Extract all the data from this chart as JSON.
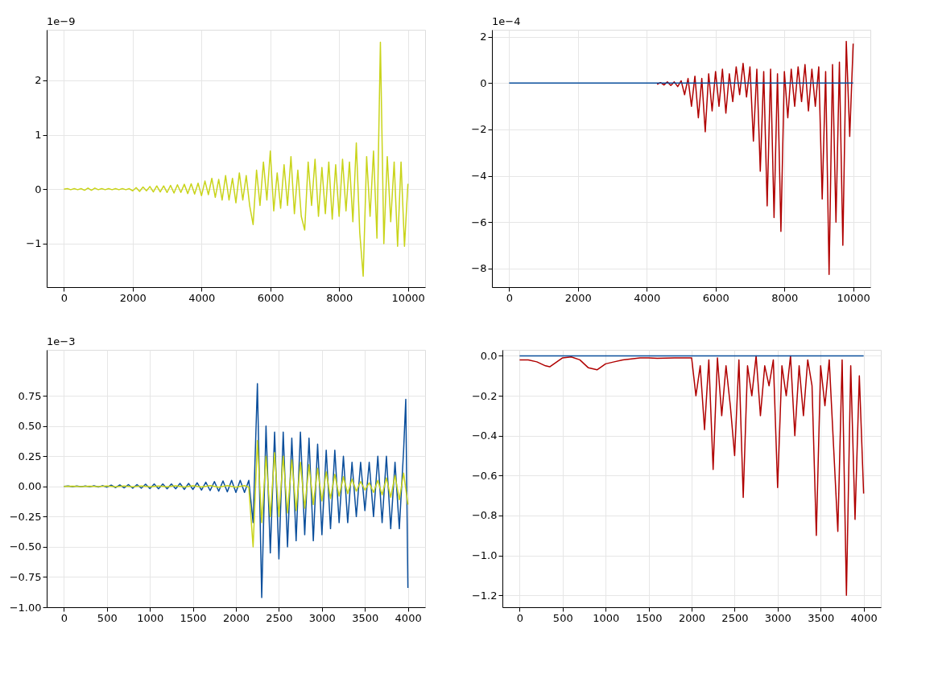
{
  "chart_data": [
    {
      "type": "line",
      "annotations": [
        "1e−9"
      ],
      "grid": true,
      "xlim": [
        -500,
        10500
      ],
      "xticks": [
        0,
        2000,
        4000,
        6000,
        8000,
        10000
      ],
      "ylim": [
        -1.8,
        2.93
      ],
      "yticks": [
        {
          "value": -1,
          "label": "−1"
        },
        0,
        1,
        2
      ],
      "x": [
        0,
        100,
        200,
        300,
        400,
        500,
        600,
        700,
        800,
        900,
        1000,
        1100,
        1200,
        1300,
        1400,
        1500,
        1600,
        1700,
        1800,
        1900,
        2000,
        2100,
        2200,
        2300,
        2400,
        2500,
        2600,
        2700,
        2800,
        2900,
        3000,
        3100,
        3200,
        3300,
        3400,
        3500,
        3600,
        3700,
        3800,
        3900,
        4000,
        4100,
        4200,
        4300,
        4400,
        4500,
        4600,
        4700,
        4800,
        4900,
        5000,
        5100,
        5200,
        5300,
        5400,
        5500,
        5600,
        5700,
        5800,
        5900,
        6000,
        6100,
        6200,
        6300,
        6400,
        6500,
        6600,
        6700,
        6800,
        6900,
        7000,
        7100,
        7200,
        7300,
        7400,
        7500,
        7600,
        7700,
        7800,
        7900,
        8000,
        8100,
        8200,
        8300,
        8400,
        8500,
        8600,
        8700,
        8800,
        8900,
        9000,
        9100,
        9200,
        9300,
        9400,
        9500,
        9600,
        9700,
        9800,
        9900,
        10000
      ],
      "series": [
        {
          "color": "#c9d41a",
          "values": [
            0,
            0.01,
            -0.01,
            0.01,
            -0.01,
            0.01,
            -0.02,
            0.02,
            -0.02,
            0.02,
            -0.01,
            0.01,
            -0.01,
            0.01,
            -0.01,
            0.01,
            -0.01,
            0.01,
            -0.01,
            0.01,
            -0.03,
            0.03,
            -0.04,
            0.04,
            -0.03,
            0.05,
            -0.05,
            0.06,
            -0.05,
            0.06,
            -0.06,
            0.07,
            -0.07,
            0.08,
            -0.06,
            0.09,
            -0.08,
            0.1,
            -0.09,
            0.11,
            -0.12,
            0.15,
            -0.1,
            0.2,
            -0.15,
            0.18,
            -0.2,
            0.25,
            -0.2,
            0.2,
            -0.25,
            0.3,
            -0.2,
            0.25,
            -0.3,
            -0.65,
            0.35,
            -0.3,
            0.5,
            -0.2,
            0.7,
            -0.4,
            0.3,
            -0.35,
            0.45,
            -0.3,
            0.6,
            -0.45,
            0.35,
            -0.5,
            -0.75,
            0.5,
            -0.3,
            0.55,
            -0.5,
            0.4,
            -0.45,
            0.5,
            -0.55,
            0.45,
            -0.5,
            0.55,
            -0.4,
            0.5,
            -0.6,
            0.85,
            -0.8,
            -1.6,
            0.6,
            -0.5,
            0.7,
            -0.9,
            2.7,
            -1.0,
            0.6,
            -0.6,
            0.5,
            -1.05,
            0.5,
            -1.05,
            0.1
          ]
        }
      ]
    },
    {
      "type": "line",
      "annotations": [
        "1e−4"
      ],
      "grid": true,
      "xlim": [
        -500,
        10500
      ],
      "xticks": [
        0,
        2000,
        4000,
        6000,
        8000,
        10000
      ],
      "ylim": [
        -8.8,
        2.3
      ],
      "yticks": [
        {
          "value": -8,
          "label": "−8"
        },
        {
          "value": -6,
          "label": "−6"
        },
        {
          "value": -4,
          "label": "−4"
        },
        {
          "value": -2,
          "label": "−2"
        },
        0,
        2
      ],
      "series": [
        {
          "color": "#b00000",
          "x": [
            4300,
            4400,
            4500,
            4600,
            4700,
            4800,
            4900,
            5000,
            5100,
            5200,
            5300,
            5400,
            5500,
            5600,
            5700,
            5800,
            5900,
            6000,
            6100,
            6200,
            6300,
            6400,
            6500,
            6600,
            6700,
            6800,
            6900,
            7000,
            7100,
            7200,
            7300,
            7400,
            7500,
            7600,
            7700,
            7800,
            7900,
            8000,
            8100,
            8200,
            8300,
            8400,
            8500,
            8600,
            8700,
            8800,
            8900,
            9000,
            9100,
            9200,
            9300,
            9400,
            9500,
            9600,
            9700,
            9800,
            9900,
            10000
          ],
          "values": [
            -0.05,
            0.02,
            -0.08,
            0.05,
            -0.1,
            0.05,
            -0.15,
            0.1,
            -0.5,
            0.2,
            -1.0,
            0.3,
            -1.5,
            0.2,
            -2.1,
            0.4,
            -1.2,
            0.5,
            -1.0,
            0.6,
            -1.3,
            0.4,
            -0.8,
            0.7,
            -0.5,
            0.85,
            -0.6,
            0.7,
            -2.5,
            0.6,
            -3.8,
            0.5,
            -5.3,
            0.6,
            -5.8,
            0.4,
            -6.4,
            0.5,
            -1.5,
            0.6,
            -1.0,
            0.7,
            -0.8,
            0.8,
            -1.2,
            0.6,
            -1.0,
            0.7,
            -5.0,
            0.5,
            -8.25,
            0.8,
            -6.0,
            0.9,
            -7.0,
            1.8,
            -2.3,
            1.7
          ]
        },
        {
          "color": "#0b4f9c",
          "x": [
            0,
            10000
          ],
          "values": [
            0,
            0
          ]
        }
      ]
    },
    {
      "type": "line",
      "annotations": [
        "1e−3"
      ],
      "grid": true,
      "xlim": [
        -200,
        4200
      ],
      "xticks": [
        0,
        500,
        1000,
        1500,
        2000,
        2500,
        3000,
        3500,
        4000
      ],
      "ylim": [
        -1.0,
        1.13
      ],
      "yticks": [
        {
          "value": -1,
          "label": "−1.00"
        },
        {
          "value": -0.75,
          "label": "−0.75"
        },
        {
          "value": -0.5,
          "label": "−0.50"
        },
        {
          "value": -0.25,
          "label": "−0.25"
        },
        {
          "value": 0,
          "label": "0.00"
        },
        {
          "value": 0.25,
          "label": "0.25"
        },
        {
          "value": 0.5,
          "label": "0.50"
        },
        {
          "value": 0.75,
          "label": "0.75"
        }
      ],
      "series": [
        {
          "color": "#0b4f9c",
          "x": [
            0,
            50,
            100,
            150,
            200,
            250,
            300,
            350,
            400,
            450,
            500,
            550,
            600,
            650,
            700,
            750,
            800,
            850,
            900,
            950,
            1000,
            1050,
            1100,
            1150,
            1200,
            1250,
            1300,
            1350,
            1400,
            1450,
            1500,
            1550,
            1600,
            1650,
            1700,
            1750,
            1800,
            1850,
            1900,
            1950,
            2000,
            2050,
            2100,
            2150,
            2200,
            2250,
            2300,
            2350,
            2400,
            2450,
            2500,
            2550,
            2600,
            2650,
            2700,
            2750,
            2800,
            2850,
            2900,
            2950,
            3000,
            3050,
            3100,
            3150,
            3200,
            3250,
            3300,
            3350,
            3400,
            3450,
            3500,
            3550,
            3600,
            3650,
            3700,
            3750,
            3800,
            3850,
            3900,
            3950,
            3975,
            4000
          ],
          "values": [
            0,
            0.003,
            -0.003,
            0.003,
            -0.003,
            0.004,
            -0.004,
            0.005,
            -0.005,
            0.006,
            -0.006,
            0.01,
            -0.01,
            0.012,
            -0.012,
            0.015,
            -0.015,
            0.015,
            -0.015,
            0.018,
            -0.018,
            0.02,
            -0.02,
            0.02,
            -0.02,
            0.02,
            -0.02,
            0.025,
            -0.025,
            0.025,
            -0.025,
            0.03,
            -0.03,
            0.035,
            -0.035,
            0.04,
            -0.04,
            0.045,
            -0.045,
            0.05,
            -0.05,
            0.05,
            -0.05,
            0.05,
            -0.3,
            0.85,
            -0.92,
            0.5,
            -0.55,
            0.45,
            -0.6,
            0.45,
            -0.5,
            0.4,
            -0.45,
            0.45,
            -0.4,
            0.4,
            -0.45,
            0.35,
            -0.4,
            0.3,
            -0.35,
            0.3,
            -0.3,
            0.25,
            -0.3,
            0.2,
            -0.25,
            0.2,
            -0.2,
            0.2,
            -0.25,
            0.25,
            -0.3,
            0.25,
            -0.35,
            0.2,
            -0.35,
            0.3,
            0.72,
            -0.84
          ]
        },
        {
          "color": "#c9d41a",
          "x": [
            0,
            100,
            200,
            300,
            400,
            500,
            600,
            700,
            800,
            900,
            1000,
            1100,
            1200,
            1300,
            1400,
            1500,
            1600,
            1700,
            1800,
            1900,
            2000,
            2100,
            2150,
            2200,
            2250,
            2300,
            2350,
            2400,
            2450,
            2500,
            2550,
            2600,
            2650,
            2700,
            2750,
            2800,
            2850,
            2900,
            2950,
            3000,
            3050,
            3100,
            3150,
            3200,
            3250,
            3300,
            3350,
            3400,
            3450,
            3500,
            3550,
            3600,
            3650,
            3700,
            3750,
            3800,
            3850,
            3900,
            3950,
            4000
          ],
          "values": [
            0,
            0.002,
            -0.002,
            0.002,
            -0.002,
            0.003,
            -0.003,
            0.003,
            -0.003,
            0.004,
            -0.004,
            0.004,
            -0.004,
            0.005,
            -0.005,
            0.005,
            -0.005,
            0.006,
            -0.006,
            0.006,
            -0.006,
            0.007,
            -0.007,
            -0.5,
            0.38,
            -0.3,
            0.25,
            -0.25,
            0.28,
            -0.25,
            0.25,
            -0.22,
            0.22,
            -0.2,
            0.2,
            -0.18,
            0.18,
            -0.15,
            0.15,
            -0.12,
            0.12,
            -0.1,
            0.1,
            -0.08,
            0.08,
            -0.06,
            0.06,
            -0.04,
            0.04,
            -0.03,
            0.03,
            -0.05,
            0.05,
            -0.07,
            0.07,
            -0.09,
            0.09,
            -0.11,
            0.11,
            -0.15
          ]
        }
      ]
    },
    {
      "type": "line",
      "grid": true,
      "xlim": [
        -200,
        4200
      ],
      "xticks": [
        0,
        500,
        1000,
        1500,
        2000,
        2500,
        3000,
        3500,
        4000
      ],
      "ylim": [
        -1.26,
        0.03
      ],
      "yticks": [
        {
          "value": -1.2,
          "label": "−1.2"
        },
        {
          "value": -1.0,
          "label": "−1.0"
        },
        {
          "value": -0.8,
          "label": "−0.8"
        },
        {
          "value": -0.6,
          "label": "−0.6"
        },
        {
          "value": -0.4,
          "label": "−0.4"
        },
        {
          "value": -0.2,
          "label": "−0.2"
        },
        {
          "value": 0,
          "label": "0.0"
        }
      ],
      "series": [
        {
          "color": "#b00000",
          "x": [
            0,
            100,
            200,
            300,
            350,
            400,
            500,
            600,
            700,
            800,
            900,
            1000,
            1100,
            1200,
            1300,
            1400,
            1500,
            1600,
            1800,
            2000,
            2050,
            2100,
            2150,
            2200,
            2250,
            2300,
            2350,
            2400,
            2450,
            2500,
            2550,
            2600,
            2650,
            2700,
            2750,
            2800,
            2850,
            2900,
            2950,
            3000,
            3050,
            3100,
            3150,
            3200,
            3250,
            3300,
            3350,
            3400,
            3450,
            3500,
            3550,
            3600,
            3650,
            3700,
            3750,
            3800,
            3850,
            3900,
            3950,
            4000
          ],
          "values": [
            -0.02,
            -0.02,
            -0.03,
            -0.05,
            -0.055,
            -0.04,
            -0.01,
            -0.005,
            -0.02,
            -0.06,
            -0.07,
            -0.04,
            -0.03,
            -0.02,
            -0.015,
            -0.01,
            -0.01,
            -0.012,
            -0.01,
            -0.01,
            -0.2,
            -0.05,
            -0.37,
            -0.02,
            -0.57,
            -0.01,
            -0.3,
            -0.05,
            -0.25,
            -0.5,
            -0.02,
            -0.71,
            -0.05,
            -0.2,
            0,
            -0.3,
            -0.05,
            -0.15,
            -0.02,
            -0.66,
            -0.05,
            -0.2,
            0,
            -0.4,
            -0.05,
            -0.3,
            -0.02,
            -0.15,
            -0.9,
            -0.05,
            -0.25,
            -0.02,
            -0.45,
            -0.88,
            -0.02,
            -1.2,
            -0.05,
            -0.82,
            -0.1,
            -0.69
          ]
        },
        {
          "color": "#0b4f9c",
          "x": [
            0,
            4000
          ],
          "values": [
            0,
            0
          ]
        }
      ]
    }
  ]
}
